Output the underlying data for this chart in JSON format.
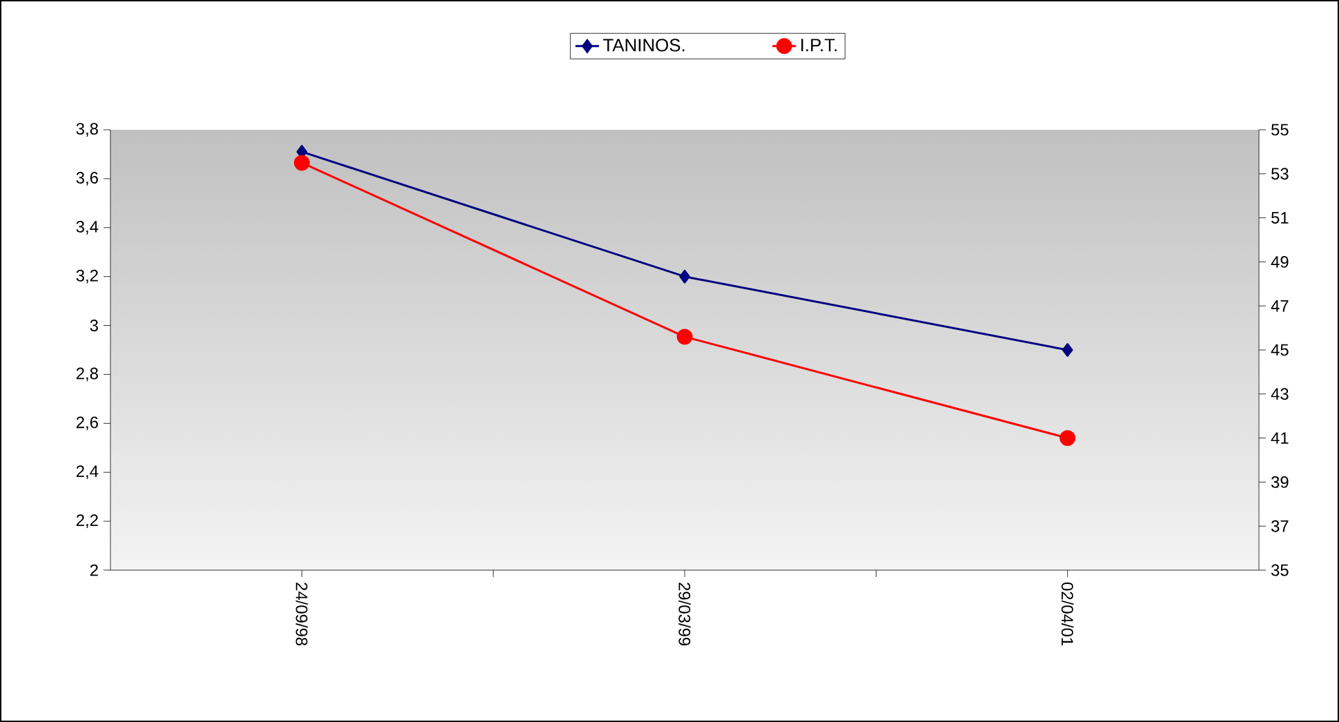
{
  "chart_data": {
    "type": "line",
    "categories": [
      "24/09/98",
      "29/03/99",
      "02/04/01"
    ],
    "series": [
      {
        "name": "TANINOS.",
        "color": "#000080",
        "values": [
          3.71,
          3.2,
          2.9
        ],
        "marker": "diamond"
      },
      {
        "name": "I.P.T.",
        "color": "#ff0000",
        "values": [
          53.5,
          45.6,
          41.0
        ],
        "marker": "circle",
        "axis": "y2"
      }
    ],
    "ylim": [
      2,
      3.8
    ],
    "yticks": [
      2,
      {
        "value": 2.2,
        "label": "2,2"
      },
      {
        "value": 2.4,
        "label": "2,4"
      },
      {
        "value": 2.6,
        "label": "2,6"
      },
      {
        "value": 2.8,
        "label": "2,8"
      },
      3,
      {
        "value": 3.2,
        "label": "3,2"
      },
      {
        "value": 3.4,
        "label": "3,4"
      },
      {
        "value": 3.6,
        "label": "3,6"
      },
      {
        "value": 3.8,
        "label": "3,8"
      }
    ],
    "y2lim": [
      35,
      55
    ],
    "y2ticks": [
      35,
      37,
      39,
      41,
      43,
      45,
      47,
      49,
      51,
      53,
      55
    ],
    "legend": "top",
    "grid": false,
    "line_style": "solid"
  }
}
